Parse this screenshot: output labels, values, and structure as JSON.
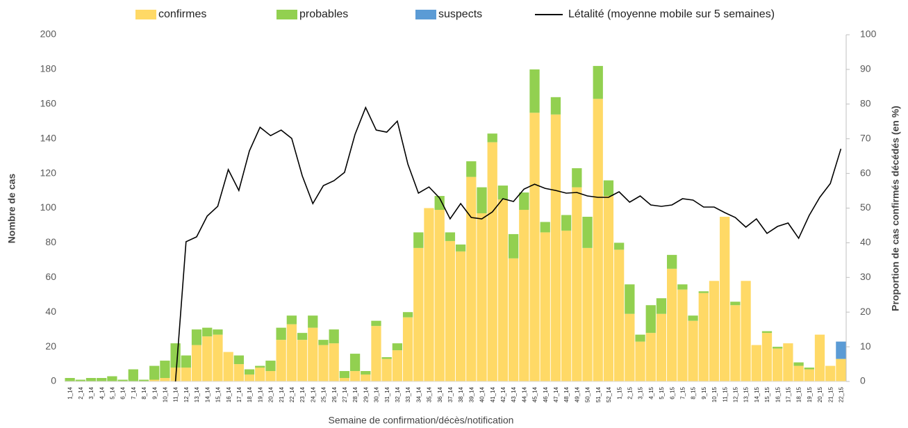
{
  "chart_data": {
    "type": "bar",
    "categories": [
      "1_14",
      "2_14",
      "3_14",
      "4_14",
      "5_14",
      "6_14",
      "7_14",
      "8_14",
      "9_14",
      "10_14",
      "11_14",
      "12_14",
      "13_14",
      "14_14",
      "15_14",
      "16_14",
      "17_14",
      "18_14",
      "19_14",
      "20_14",
      "21_14",
      "22_14",
      "23_14",
      "24_14",
      "25_14",
      "26_14",
      "27_14",
      "28_14",
      "29_14",
      "30_14",
      "31_14",
      "32_14",
      "33_14",
      "34_14",
      "35_14",
      "36_14",
      "37_14",
      "38_14",
      "39_14",
      "40_14",
      "41_14",
      "42_14",
      "43_14",
      "44_14",
      "45_14",
      "46_14",
      "47_14",
      "48_14",
      "49_14",
      "50_14",
      "51_14",
      "52_14",
      "1_15",
      "2_15",
      "3_15",
      "4_15",
      "5_15",
      "6_15",
      "7_15",
      "8_15",
      "9_15",
      "10_15",
      "11_15",
      "12_15",
      "13_15",
      "14_15",
      "15_15",
      "16_15",
      "17_15",
      "18_15",
      "19_15",
      "20_15",
      "21_15",
      "22_15"
    ],
    "series": [
      {
        "name": "confirmes",
        "color": "#FFD966",
        "values": [
          0,
          0,
          0,
          0,
          0,
          0,
          0,
          0,
          1,
          2,
          8,
          8,
          21,
          26,
          27,
          17,
          10,
          4,
          8,
          6,
          24,
          33,
          24,
          31,
          21,
          22,
          2,
          6,
          4,
          32,
          13,
          18,
          37,
          77,
          100,
          99,
          81,
          75,
          118,
          97,
          138,
          105,
          71,
          99,
          155,
          86,
          154,
          87,
          112,
          77,
          163,
          107,
          76,
          39,
          23,
          28,
          39,
          65,
          53,
          35,
          51,
          58,
          95,
          44,
          58,
          21,
          28,
          19,
          22,
          9,
          7,
          27,
          9,
          13
        ]
      },
      {
        "name": "probables",
        "color": "#92D050",
        "values": [
          2,
          1,
          2,
          2,
          3,
          1,
          7,
          1,
          8,
          10,
          14,
          7,
          9,
          5,
          3,
          0,
          5,
          3,
          1,
          6,
          7,
          5,
          4,
          7,
          3,
          8,
          4,
          10,
          2,
          3,
          1,
          4,
          3,
          9,
          0,
          8,
          5,
          4,
          9,
          15,
          5,
          8,
          14,
          10,
          25,
          6,
          10,
          9,
          11,
          18,
          19,
          9,
          4,
          17,
          4,
          16,
          9,
          8,
          3,
          3,
          1,
          0,
          0,
          2,
          0,
          0,
          1,
          1,
          0,
          2,
          1,
          0,
          0,
          0
        ]
      },
      {
        "name": "suspects",
        "color": "#5B9BD5",
        "values": [
          0,
          0,
          0,
          0,
          0,
          0,
          0,
          0,
          0,
          0,
          0,
          0,
          0,
          0,
          0,
          0,
          0,
          0,
          0,
          0,
          0,
          0,
          0,
          0,
          0,
          0,
          0,
          0,
          0,
          0,
          0,
          0,
          0,
          0,
          0,
          0,
          0,
          0,
          0,
          0,
          0,
          0,
          0,
          0,
          0,
          0,
          0,
          0,
          0,
          0,
          0,
          0,
          0,
          0,
          0,
          0,
          0,
          0,
          0,
          0,
          0,
          0,
          0,
          0,
          0,
          0,
          0,
          0,
          0,
          0,
          0,
          0,
          0,
          10
        ]
      },
      {
        "name": "Létalité (moyenne mobile sur 5 semaines)",
        "color": "#000000",
        "axis": "y2",
        "type": "line",
        "values": [
          null,
          null,
          null,
          null,
          null,
          null,
          null,
          null,
          null,
          null,
          0,
          40.3,
          41.7,
          47.7,
          50.5,
          61.1,
          55.1,
          66.5,
          73.3,
          70.9,
          72.5,
          70.1,
          59.3,
          51.3,
          56.5,
          57.9,
          60.3,
          71.3,
          79,
          72.5,
          71.9,
          75.1,
          62.7,
          54.3,
          56.1,
          52.9,
          46.9,
          51.3,
          47.3,
          46.9,
          48.9,
          52.7,
          51.9,
          55.5,
          56.9,
          55.7,
          55.1,
          54.3,
          54.5,
          53.5,
          53.1,
          53.1,
          54.7,
          51.7,
          53.5,
          50.9,
          50.5,
          50.9,
          52.7,
          52.3,
          50.3,
          50.3,
          48.7,
          47.3,
          44.5,
          46.9,
          42.7,
          44.7,
          45.7,
          41.3,
          47.9,
          53.1,
          57.1,
          67.1
        ]
      }
    ],
    "x_label": "Semaine de confirmation/décès/notification",
    "y_label": "Nombre de cas",
    "y2_label": "Proportion de cas confirmés décédés (en %)",
    "ylim": [
      0,
      200
    ],
    "yticks": [
      0,
      20,
      40,
      60,
      80,
      100,
      120,
      140,
      160,
      180,
      200
    ],
    "y2lim": [
      0,
      100
    ],
    "y2ticks": [
      0,
      10,
      20,
      30,
      40,
      50,
      60,
      70,
      80,
      90,
      100
    ],
    "stacked": true,
    "grid": false,
    "legend": "top"
  }
}
